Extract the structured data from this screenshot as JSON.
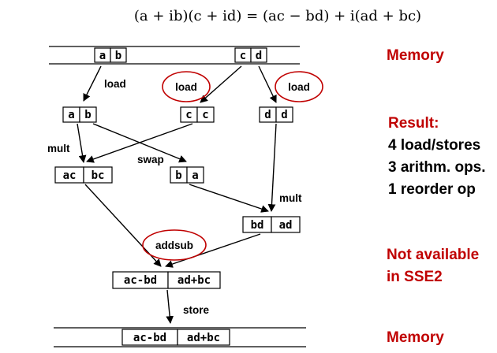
{
  "formula": "(a + ib)(c + id) = (ac − bd) + i(ad + bc)",
  "colors": {
    "red": "#c00000",
    "black": "#000000"
  },
  "memory_top": {
    "left_cells": [
      "a",
      "b"
    ],
    "right_cells": [
      "c",
      "d"
    ]
  },
  "registers": {
    "ab": [
      "a",
      "b"
    ],
    "cc": [
      "c",
      "c"
    ],
    "dd": [
      "d",
      "d"
    ],
    "acbc": [
      "ac",
      "bc"
    ],
    "ba": [
      "b",
      "a"
    ],
    "bdad": [
      "bd",
      "ad"
    ],
    "result": [
      "ac-bd",
      "ad+bc"
    ]
  },
  "memory_bottom": {
    "cells": [
      "ac-bd",
      "ad+bc"
    ]
  },
  "ops": {
    "load1": "load",
    "load2": "load",
    "load3": "load",
    "mult1": "mult",
    "swap": "swap",
    "mult2": "mult",
    "addsub": "addsub",
    "store": "store"
  },
  "side": {
    "memory_top": "Memory",
    "result_title": "Result:",
    "result_lines": [
      "4 load/stores",
      "3 arithm. ops.",
      "1 reorder op"
    ],
    "not_available": [
      "Not available",
      "in SSE2"
    ],
    "memory_bottom": "Memory"
  }
}
